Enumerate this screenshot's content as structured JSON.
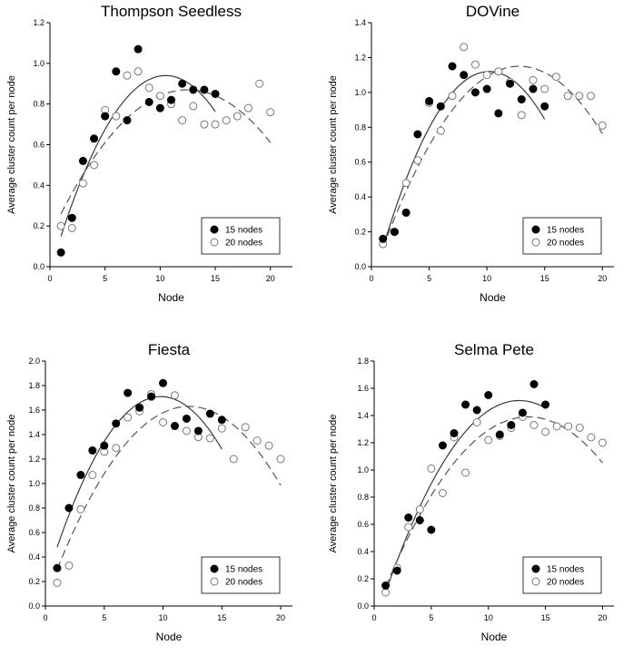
{
  "chart_data": [
    {
      "type": "scatter",
      "title": "Thompson Seedless",
      "xlabel": "Node",
      "ylabel": "Average cluster count per node",
      "xlim": [
        0,
        22
      ],
      "ylim": [
        0,
        1.2
      ],
      "xticks": [
        0,
        5,
        10,
        15,
        20
      ],
      "yticks": [
        0.0,
        0.2,
        0.4,
        0.6,
        0.8,
        1.0,
        1.2
      ],
      "ytick_labels": [
        "0.0",
        "0.2",
        "0.4",
        "0.6",
        "0.8",
        "1.0",
        "1.2"
      ],
      "legend_position": "bottom-right",
      "series": [
        {
          "name": "15 nodes",
          "marker": "filled-circle",
          "fit_line": "solid",
          "x": [
            1,
            2,
            3,
            4,
            5,
            6,
            7,
            8,
            9,
            10,
            11,
            12,
            13,
            14,
            15
          ],
          "y": [
            0.07,
            0.24,
            0.52,
            0.63,
            0.74,
            0.96,
            0.72,
            1.07,
            0.81,
            0.78,
            0.82,
            0.9,
            0.87,
            0.87,
            0.85
          ]
        },
        {
          "name": "20 nodes",
          "marker": "open-circle",
          "fit_line": "dashed",
          "x": [
            1,
            2,
            3,
            4,
            5,
            6,
            7,
            8,
            9,
            10,
            11,
            12,
            13,
            14,
            15,
            16,
            17,
            18,
            19,
            20
          ],
          "y": [
            0.2,
            0.19,
            0.41,
            0.5,
            0.77,
            0.74,
            0.94,
            0.96,
            0.88,
            0.84,
            0.8,
            0.72,
            0.79,
            0.7,
            0.7,
            0.72,
            0.74,
            0.78,
            0.9,
            0.76
          ]
        }
      ],
      "fits": {
        "15 nodes": {
          "vertex_x": 10.5,
          "peak": 0.94,
          "start_x": 1,
          "start_y": 0.15,
          "end_x": 15
        },
        "20 nodes": {
          "vertex_x": 12.5,
          "peak": 0.87,
          "start_x": 1,
          "start_y": 0.26,
          "end_x": 20
        }
      }
    },
    {
      "type": "scatter",
      "title": "DOVine",
      "xlabel": "Node",
      "ylabel": "Average cluster count per node",
      "xlim": [
        0,
        21
      ],
      "ylim": [
        0,
        1.4
      ],
      "xticks": [
        0,
        5,
        10,
        15,
        20
      ],
      "yticks": [
        0.0,
        0.2,
        0.4,
        0.6,
        0.8,
        1.0,
        1.2,
        1.4
      ],
      "ytick_labels": [
        "0.0",
        "0.2",
        "0.4",
        "0.6",
        "0.8",
        "1.0",
        "1.2",
        "1.4"
      ],
      "legend_position": "bottom-right",
      "series": [
        {
          "name": "15 nodes",
          "marker": "filled-circle",
          "fit_line": "solid",
          "x": [
            1,
            2,
            3,
            4,
            5,
            6,
            7,
            8,
            9,
            10,
            11,
            12,
            13,
            14,
            15
          ],
          "y": [
            0.16,
            0.2,
            0.31,
            0.76,
            0.95,
            0.92,
            1.15,
            1.1,
            1.0,
            1.02,
            0.88,
            1.05,
            0.96,
            1.02,
            0.92
          ]
        },
        {
          "name": "20 nodes",
          "marker": "open-circle",
          "fit_line": "dashed",
          "x": [
            1,
            2,
            3,
            4,
            5,
            6,
            7,
            8,
            9,
            10,
            11,
            12,
            13,
            14,
            15,
            16,
            17,
            18,
            19,
            20
          ],
          "y": [
            0.13,
            0.2,
            0.48,
            0.61,
            0.94,
            0.78,
            0.98,
            1.26,
            1.16,
            1.1,
            1.12,
            1.06,
            0.87,
            1.07,
            1.02,
            1.09,
            0.98,
            0.98,
            0.98,
            0.81
          ]
        }
      ],
      "fits": {
        "15 nodes": {
          "vertex_x": 10.2,
          "peak": 1.12,
          "start_x": 1,
          "start_y": 0.11,
          "end_x": 15
        },
        "20 nodes": {
          "vertex_x": 12.8,
          "peak": 1.15,
          "start_x": 1,
          "start_y": 0.11,
          "end_x": 20
        }
      }
    },
    {
      "type": "scatter",
      "title": "Fiesta",
      "xlabel": "Node",
      "ylabel": "Average cluster count per node",
      "xlim": [
        0,
        21
      ],
      "ylim": [
        0,
        2.0
      ],
      "xticks": [
        0,
        5,
        10,
        15,
        20
      ],
      "yticks": [
        0.0,
        0.2,
        0.4,
        0.6,
        0.8,
        1.0,
        1.2,
        1.4,
        1.6,
        1.8,
        2.0
      ],
      "ytick_labels": [
        "0.0",
        "0.2",
        "0.4",
        "0.6",
        "0.8",
        "1.0",
        "1.2",
        "1.4",
        "1.6",
        "1.8",
        "2.0"
      ],
      "legend_position": "bottom-right",
      "series": [
        {
          "name": "15 nodes",
          "marker": "filled-circle",
          "fit_line": "solid",
          "x": [
            1,
            2,
            3,
            4,
            5,
            6,
            7,
            8,
            9,
            10,
            11,
            12,
            13,
            14,
            15
          ],
          "y": [
            0.31,
            0.8,
            1.07,
            1.27,
            1.31,
            1.49,
            1.74,
            1.62,
            1.71,
            1.82,
            1.47,
            1.53,
            1.43,
            1.57,
            1.52
          ]
        },
        {
          "name": "20 nodes",
          "marker": "open-circle",
          "fit_line": "dashed",
          "x": [
            1,
            2,
            3,
            4,
            5,
            6,
            7,
            8,
            9,
            10,
            11,
            12,
            13,
            14,
            15,
            16,
            17,
            18,
            19,
            20
          ],
          "y": [
            0.19,
            0.33,
            0.79,
            1.07,
            1.26,
            1.29,
            1.54,
            1.59,
            1.73,
            1.5,
            1.72,
            1.43,
            1.38,
            1.37,
            1.45,
            1.2,
            1.46,
            1.35,
            1.31,
            1.2
          ]
        }
      ],
      "fits": {
        "15 nodes": {
          "vertex_x": 9.8,
          "peak": 1.71,
          "start_x": 1,
          "start_y": 0.48,
          "end_x": 15
        },
        "20 nodes": {
          "vertex_x": 12.2,
          "peak": 1.63,
          "start_x": 1,
          "start_y": 0.3,
          "end_x": 20
        }
      }
    },
    {
      "type": "scatter",
      "title": "Selma Pete",
      "xlabel": "Node",
      "ylabel": "Average cluster count per node",
      "xlim": [
        0,
        21
      ],
      "ylim": [
        0,
        1.8
      ],
      "xticks": [
        0,
        5,
        10,
        15,
        20
      ],
      "yticks": [
        0.0,
        0.2,
        0.4,
        0.6,
        0.8,
        1.0,
        1.2,
        1.4,
        1.6,
        1.8
      ],
      "ytick_labels": [
        "0.0",
        "0.2",
        "0.4",
        "0.6",
        "0.8",
        "1.0",
        "1.2",
        "1.4",
        "1.6",
        "1.8"
      ],
      "legend_position": "bottom-right",
      "series": [
        {
          "name": "15 nodes",
          "marker": "filled-circle",
          "fit_line": "solid",
          "x": [
            1,
            2,
            3,
            4,
            5,
            6,
            7,
            8,
            9,
            10,
            11,
            12,
            13,
            14,
            15
          ],
          "y": [
            0.15,
            0.26,
            0.65,
            0.63,
            0.56,
            1.18,
            1.27,
            1.48,
            1.44,
            1.55,
            1.26,
            1.33,
            1.42,
            1.63,
            1.48
          ]
        },
        {
          "name": "20 nodes",
          "marker": "open-circle",
          "fit_line": "dashed",
          "x": [
            1,
            2,
            3,
            4,
            5,
            6,
            7,
            8,
            9,
            10,
            11,
            12,
            13,
            14,
            15,
            16,
            17,
            18,
            19,
            20
          ],
          "y": [
            0.1,
            0.28,
            0.58,
            0.71,
            1.01,
            0.83,
            1.24,
            0.98,
            1.35,
            1.22,
            1.25,
            1.31,
            1.39,
            1.33,
            1.28,
            1.32,
            1.32,
            1.31,
            1.24,
            1.2
          ]
        }
      ],
      "fits": {
        "15 nodes": {
          "vertex_x": 12.7,
          "peak": 1.51,
          "start_x": 1,
          "start_y": 0.1,
          "end_x": 15
        },
        "20 nodes": {
          "vertex_x": 13.5,
          "peak": 1.39,
          "start_x": 1,
          "start_y": 0.14,
          "end_x": 20
        }
      }
    }
  ]
}
